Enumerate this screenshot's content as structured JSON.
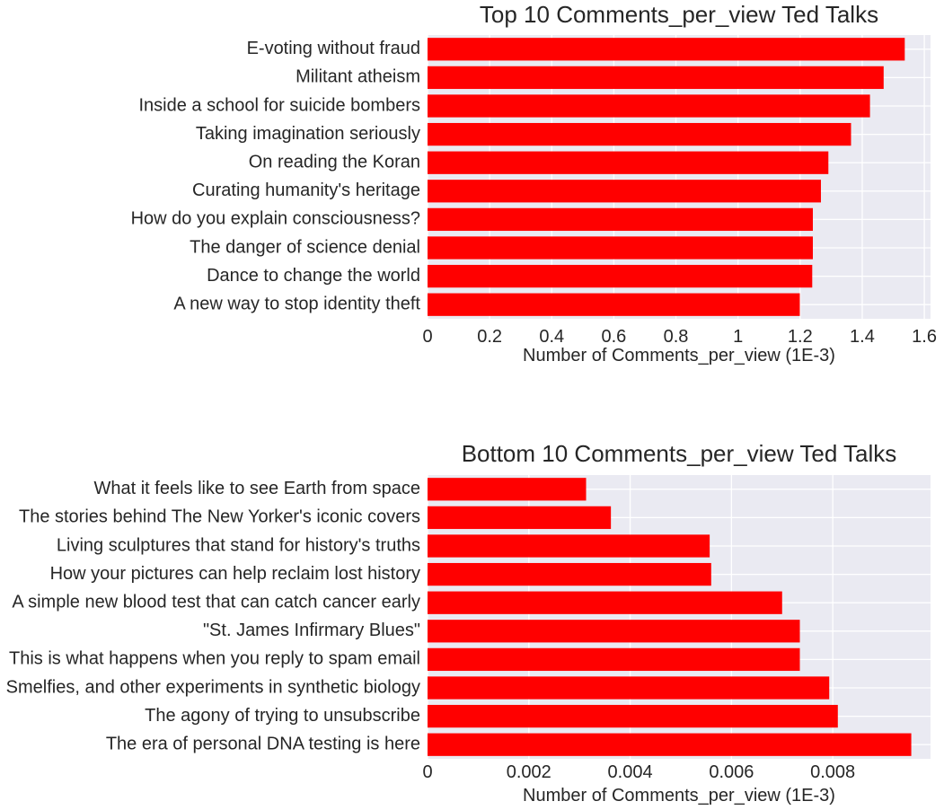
{
  "chart_data": [
    {
      "type": "bar",
      "orientation": "horizontal",
      "title": "Top 10 Comments_per_view Ted Talks",
      "xlabel": "Number of Comments_per_view (1E-3)",
      "ylabel": "",
      "xlim": [
        0,
        1.62
      ],
      "xticks": [
        0,
        0.2,
        0.4,
        0.6,
        0.8,
        1,
        1.2,
        1.4,
        1.6
      ],
      "xtick_labels": [
        "0",
        "0.2",
        "0.4",
        "0.6",
        "0.8",
        "1",
        "1.2",
        "1.4",
        "1.6"
      ],
      "grid": true,
      "bar_color": "#ff0000",
      "categories": [
        "E-voting without fraud",
        "Militant atheism",
        "Inside a school for suicide bombers",
        "Taking imagination seriously",
        "On reading the Koran",
        "Curating humanity's heritage",
        "How do you explain consciousness?",
        "The danger of science denial",
        "Dance to change the world",
        "A new way to stop identity theft"
      ],
      "values": [
        1.537,
        1.469,
        1.425,
        1.364,
        1.291,
        1.267,
        1.241,
        1.241,
        1.239,
        1.199
      ]
    },
    {
      "type": "bar",
      "orientation": "horizontal",
      "title": "Bottom 10 Comments_per_view Ted Talks",
      "xlabel": "Number of Comments_per_view (1E-3)",
      "ylabel": "",
      "xlim": [
        0,
        0.00993
      ],
      "xticks": [
        0,
        0.002,
        0.004,
        0.006,
        0.008
      ],
      "xtick_labels": [
        "0",
        "0.002",
        "0.004",
        "0.006",
        "0.008"
      ],
      "grid": true,
      "bar_color": "#ff0000",
      "categories": [
        "What it feels like to see Earth from space",
        "The stories behind The New Yorker's iconic covers",
        "Living sculptures that stand for history's truths",
        "How your pictures can help reclaim lost history",
        "A simple new blood test that can catch cancer early",
        "\"St. James Infirmary Blues\"",
        "This is what happens when you reply to spam email",
        "Smelfies, and other experiments in synthetic biology",
        "The agony of trying to unsubscribe",
        "The era of personal DNA testing is here"
      ],
      "values": [
        0.00313,
        0.00362,
        0.00557,
        0.0056,
        0.007,
        0.00735,
        0.00735,
        0.00793,
        0.0081,
        0.00955
      ]
    }
  ]
}
